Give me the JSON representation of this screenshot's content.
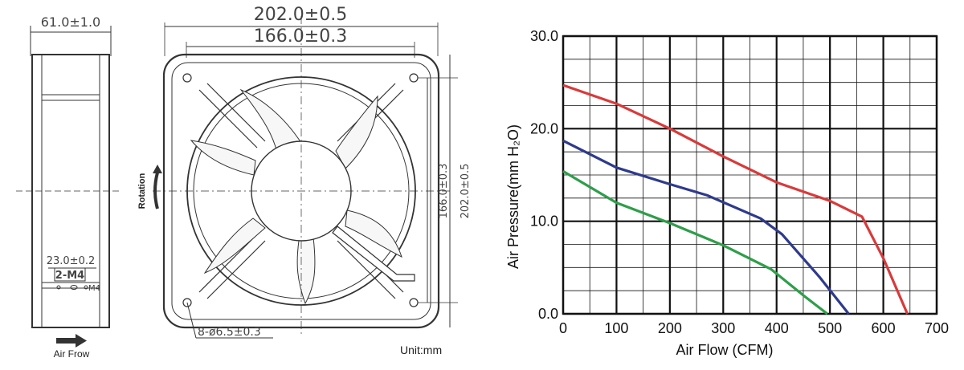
{
  "side_view": {
    "width_dim": "61.0±1.0",
    "screw_dim": "23.0±0.2",
    "screw_label": "2-M4",
    "screw_label_small": "M4",
    "airflow_label": "Air Frow"
  },
  "front_view": {
    "outer_dim": "202.0±0.5",
    "inner_dim": "166.0±0.3",
    "right_outer_dim": "202.0±0.5",
    "right_inner_dim": "166.0±0.3",
    "hole_dim": "8-ø6.5±0.3",
    "rotation_label": "Rotation",
    "unit_label": "Unit:mm"
  },
  "chart_data": {
    "type": "line",
    "title": "",
    "xlabel": "Air Flow (CFM)",
    "ylabel": "Air Pressure(mm H₂O)",
    "xlim": [
      0,
      700
    ],
    "ylim": [
      0,
      30
    ],
    "x_ticks": [
      "0",
      "100",
      "200",
      "300",
      "400",
      "500",
      "600",
      "700"
    ],
    "y_ticks": [
      "0.0",
      "10.0",
      "20.0",
      "30.0"
    ],
    "grid": true,
    "series": [
      {
        "color": "#d93a3a",
        "points": [
          [
            0,
            24.7
          ],
          [
            100,
            22.7
          ],
          [
            200,
            20.0
          ],
          [
            300,
            17.0
          ],
          [
            400,
            14.2
          ],
          [
            500,
            12.2
          ],
          [
            560,
            10.5
          ],
          [
            600,
            6.0
          ],
          [
            645,
            0
          ]
        ]
      },
      {
        "color": "#2e3a8c",
        "points": [
          [
            0,
            18.7
          ],
          [
            100,
            15.8
          ],
          [
            200,
            14.0
          ],
          [
            270,
            12.8
          ],
          [
            370,
            10.3
          ],
          [
            410,
            8.6
          ],
          [
            480,
            4.0
          ],
          [
            535,
            0
          ]
        ]
      },
      {
        "color": "#2e9e4a",
        "points": [
          [
            0,
            15.4
          ],
          [
            100,
            12.0
          ],
          [
            200,
            9.8
          ],
          [
            300,
            7.4
          ],
          [
            390,
            4.8
          ],
          [
            450,
            2.0
          ],
          [
            495,
            0
          ]
        ]
      }
    ]
  }
}
